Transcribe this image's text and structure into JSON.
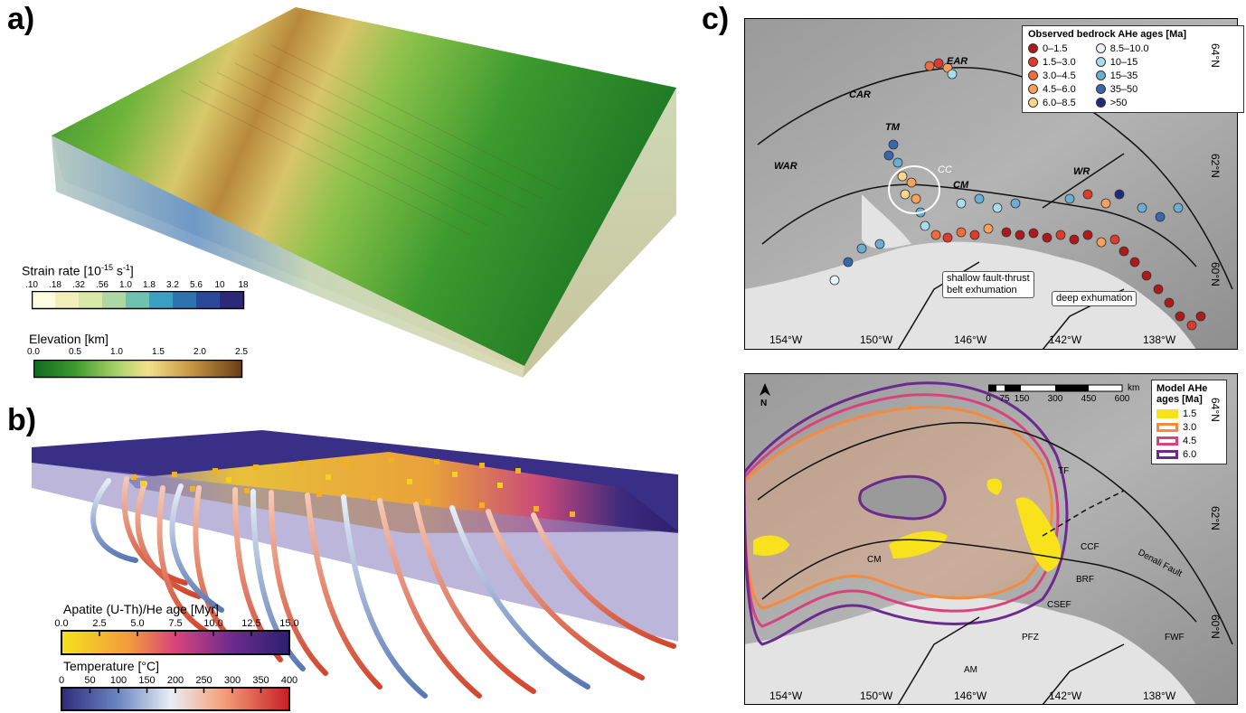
{
  "panels": {
    "a": "a)",
    "b": "b)",
    "c": "c)"
  },
  "strain_bar": {
    "title_main": "Strain rate [10",
    "title_exp1": "-15",
    "title_unit": "s",
    "title_exp2": "-1",
    "title_end": "]",
    "ticks": [
      ".10",
      ".18",
      ".32",
      ".56",
      "1.0",
      "1.8",
      "3.2",
      "5.6",
      "10",
      "18"
    ],
    "colors": [
      "#fffde0",
      "#f3efb8",
      "#d9e8a6",
      "#aed8a2",
      "#6fc1b0",
      "#3aa0c2",
      "#2e73b0",
      "#2a4a99",
      "#2d2877"
    ]
  },
  "elev_bar": {
    "title": "Elevation [km]",
    "ticks": [
      "0.0",
      "0.5",
      "1.0",
      "1.5",
      "2.0",
      "2.5"
    ]
  },
  "he_bar": {
    "title": "Apatite (U-Th)/He age [Myr]",
    "ticks": [
      "0.0",
      "2.5",
      "5.0",
      "7.5",
      "10.0",
      "12.5",
      "15.0"
    ]
  },
  "temp_bar": {
    "title": "Temperature [°C]",
    "ticks": [
      "0",
      "50",
      "100",
      "150",
      "200",
      "250",
      "300",
      "350",
      "400"
    ]
  },
  "obs_legend": {
    "title": "Observed bedrock AHe ages [Ma]",
    "items_left": [
      {
        "label": "0–1.5",
        "color": "#b0191c"
      },
      {
        "label": "1.5–3.0",
        "color": "#e03b2a"
      },
      {
        "label": "3.0–4.5",
        "color": "#f26b3a"
      },
      {
        "label": "4.5–6.0",
        "color": "#f9a05a"
      },
      {
        "label": "6.0–8.5",
        "color": "#fdd78a"
      }
    ],
    "items_right": [
      {
        "label": "8.5–10.0",
        "color": "#e9f6fb"
      },
      {
        "label": "10–15",
        "color": "#a9dcee"
      },
      {
        "label": "15–35",
        "color": "#6aaed6"
      },
      {
        "label": "35–50",
        "color": "#3667b0"
      },
      {
        "label": ">50",
        "color": "#1d2b82"
      }
    ]
  },
  "model_legend": {
    "title_line1": "Model AHe",
    "title_line2": "ages [Ma]",
    "items": [
      {
        "label": "1.5",
        "color": "#f7e21b"
      },
      {
        "label": "3.0",
        "color": "#f58a3e"
      },
      {
        "label": "4.5",
        "color": "#d9437c"
      },
      {
        "label": "6.0",
        "color": "#6b2b8e"
      }
    ]
  },
  "map_top": {
    "lat_labels": [
      "64°N",
      "62°N",
      "60°N"
    ],
    "lon_labels": [
      "154°W",
      "150°W",
      "146°W",
      "142°W",
      "138°W"
    ],
    "region_labels": [
      "EAR",
      "CAR",
      "TM",
      "WAR",
      "CC",
      "CM",
      "WR"
    ],
    "callouts": [
      "shallow fault-thrust",
      "belt exhumation",
      "deep exhumation"
    ]
  },
  "map_bottom": {
    "lat_labels": [
      "64°N",
      "62°N",
      "60°N"
    ],
    "lon_labels": [
      "154°W",
      "150°W",
      "146°W",
      "142°W",
      "138°W"
    ],
    "north": "N",
    "scale_ticks": [
      "0",
      "75",
      "150",
      "300",
      "450",
      "600"
    ],
    "scale_unit": "km",
    "fault_labels": [
      "TF",
      "CCF",
      "Denali Fault",
      "BRF",
      "CSEF",
      "PFZ",
      "AM",
      "FWF",
      "CM"
    ]
  }
}
